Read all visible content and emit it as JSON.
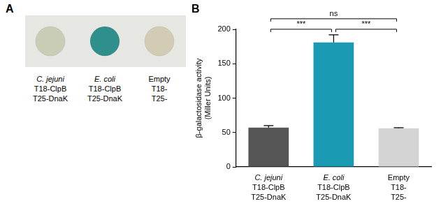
{
  "panel_a": {
    "panel_label": "A",
    "spots": [
      {
        "color": "#c9cdb6",
        "label": [
          "C. jejuni",
          "T18-ClpB",
          "T25-DnaK"
        ]
      },
      {
        "color": "#2f8f8c",
        "label": [
          "E. coli",
          "T18-ClpB",
          "T25-DnaK"
        ]
      },
      {
        "color": "#d2ccb4",
        "label": [
          "Empty",
          "T18-",
          "T25-"
        ]
      }
    ]
  },
  "chart_data": {
    "type": "bar",
    "panel_label": "B",
    "y_label": [
      "β-galactosidase activity",
      "(Miller Units)"
    ],
    "categories": [
      [
        "C. jejuni",
        "T18-ClpB",
        "T25-DnaK"
      ],
      [
        "E. coli",
        "T18-ClpB",
        "T25-DnaK"
      ],
      [
        "Empty",
        "T18-",
        "T25-"
      ]
    ],
    "values": [
      57,
      181,
      56
    ],
    "errors": [
      3,
      11,
      1
    ],
    "colors": [
      "#555555",
      "#1b9ab3",
      "#d4d4d4"
    ],
    "ylim": [
      0,
      200
    ],
    "yticks": [
      0,
      50,
      100,
      150,
      200
    ],
    "grid": false,
    "significance": [
      {
        "from": 0,
        "to": 1,
        "label": "***"
      },
      {
        "from": 0,
        "to": 2,
        "label": "ns"
      },
      {
        "from": 1,
        "to": 2,
        "label": "***"
      }
    ]
  }
}
